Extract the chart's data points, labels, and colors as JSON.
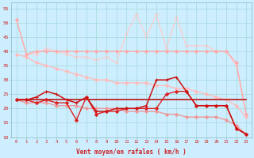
{
  "xlabel": "Vent moyen/en rafales ( km/h )",
  "bg_color": "#cceeff",
  "grid_color": "#aadddd",
  "xlim": [
    -0.5,
    23.5
  ],
  "ylim": [
    10,
    57
  ],
  "yticks": [
    10,
    15,
    20,
    25,
    30,
    35,
    40,
    45,
    50,
    55
  ],
  "xticks": [
    0,
    1,
    2,
    3,
    4,
    5,
    6,
    7,
    8,
    9,
    10,
    11,
    12,
    13,
    14,
    15,
    16,
    17,
    18,
    19,
    20,
    21,
    22,
    23
  ],
  "lines": [
    {
      "x": [
        0,
        1,
        2,
        3,
        4,
        5,
        6,
        7,
        8,
        9,
        10,
        11,
        12,
        13,
        14,
        15,
        16,
        17,
        18,
        19,
        20,
        21,
        22,
        23
      ],
      "y": [
        51,
        39,
        40,
        40,
        40,
        40,
        40,
        40,
        40,
        40,
        40,
        40,
        40,
        40,
        40,
        40,
        40,
        40,
        40,
        40,
        40,
        40,
        36,
        18
      ],
      "color": "#ffaaaa",
      "lw": 1.0,
      "marker": "D",
      "ms": 2.0,
      "zorder": 2,
      "ls": "-"
    },
    {
      "x": [
        0,
        1,
        2,
        3,
        4,
        5,
        6,
        7,
        8,
        9,
        10,
        11,
        12,
        13,
        14,
        15,
        16,
        17,
        18,
        19,
        20,
        21,
        22,
        23
      ],
      "y": [
        39,
        38,
        36,
        35,
        34,
        33,
        32,
        31,
        30,
        30,
        29,
        29,
        29,
        29,
        28,
        28,
        27,
        27,
        26,
        25,
        24,
        23,
        21,
        17
      ],
      "color": "#ffbbbb",
      "lw": 1.0,
      "marker": "D",
      "ms": 2.0,
      "zorder": 2,
      "ls": "-"
    },
    {
      "x": [
        0,
        1,
        2,
        3,
        4,
        5,
        6,
        7,
        8,
        9,
        10,
        11,
        12,
        13,
        14,
        15,
        16,
        17,
        18,
        19,
        20,
        21,
        22,
        23
      ],
      "y": [
        51,
        39,
        39,
        41,
        40,
        39,
        38,
        38,
        37,
        38,
        36,
        46,
        53,
        45,
        53,
        41,
        52,
        42,
        42,
        42,
        40,
        40,
        35,
        18
      ],
      "color": "#ffcccc",
      "lw": 0.9,
      "marker": "D",
      "ms": 1.8,
      "zorder": 1,
      "ls": "-"
    },
    {
      "x": [
        0,
        1,
        2,
        3,
        4,
        5,
        6,
        7,
        8,
        9,
        10,
        11,
        12,
        13,
        14,
        15,
        16,
        17,
        18,
        19,
        20,
        21,
        22,
        23
      ],
      "y": [
        23,
        23,
        23,
        23,
        23,
        23,
        23,
        23,
        23,
        23,
        23,
        23,
        23,
        23,
        23,
        23,
        23,
        23,
        23,
        23,
        23,
        23,
        23,
        23
      ],
      "color": "#bb1111",
      "lw": 1.2,
      "marker": null,
      "ms": 0,
      "zorder": 3,
      "ls": "-"
    },
    {
      "x": [
        0,
        1,
        2,
        3,
        4,
        5,
        6,
        7,
        8,
        9,
        10,
        11,
        12,
        13,
        14,
        15,
        16,
        17,
        18,
        19,
        20,
        21,
        22,
        23
      ],
      "y": [
        23,
        23,
        24,
        26,
        25,
        23,
        22,
        24,
        19,
        19,
        20,
        20,
        20,
        21,
        30,
        30,
        31,
        26,
        21,
        21,
        21,
        21,
        13,
        11
      ],
      "color": "#cc1111",
      "lw": 1.1,
      "marker": "+",
      "ms": 3.5,
      "zorder": 4,
      "ls": "-"
    },
    {
      "x": [
        0,
        1,
        2,
        3,
        4,
        5,
        6,
        7,
        8,
        9,
        10,
        11,
        12,
        13,
        14,
        15,
        16,
        17,
        18,
        19,
        20,
        21,
        22,
        23
      ],
      "y": [
        23,
        23,
        22,
        23,
        22,
        22,
        16,
        24,
        18,
        19,
        19,
        20,
        20,
        20,
        20,
        25,
        26,
        26,
        21,
        21,
        21,
        21,
        13,
        11
      ],
      "color": "#dd2222",
      "lw": 1.0,
      "marker": "D",
      "ms": 2.0,
      "zorder": 3,
      "ls": "-"
    },
    {
      "x": [
        0,
        1,
        2,
        3,
        4,
        5,
        6,
        7,
        8,
        9,
        10,
        11,
        12,
        13,
        14,
        15,
        16,
        17,
        18,
        19,
        20,
        21,
        22,
        23
      ],
      "y": [
        23,
        22,
        22,
        22,
        21,
        21,
        21,
        20,
        20,
        20,
        20,
        19,
        19,
        19,
        19,
        18,
        18,
        17,
        17,
        17,
        17,
        16,
        14,
        11
      ],
      "color": "#ee9999",
      "lw": 1.0,
      "marker": "D",
      "ms": 2.0,
      "zorder": 2,
      "ls": "-"
    }
  ]
}
